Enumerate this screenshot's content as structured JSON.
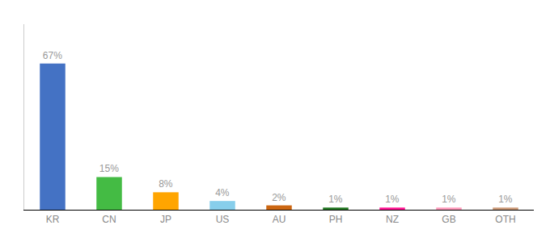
{
  "chart_data": {
    "type": "bar",
    "categories": [
      "KR",
      "CN",
      "JP",
      "US",
      "AU",
      "PH",
      "NZ",
      "GB",
      "OTH"
    ],
    "values": [
      67,
      15,
      8,
      4,
      2,
      1,
      1,
      1,
      1
    ],
    "value_labels": [
      "67%",
      "15%",
      "8%",
      "4%",
      "2%",
      "1%",
      "1%",
      "1%",
      "1%"
    ],
    "colors": [
      "#4472C4",
      "#44BB44",
      "#FFA500",
      "#87CEEB",
      "#CC6611",
      "#227722",
      "#FF1493",
      "#FF99BB",
      "#CC9977"
    ],
    "ylim": [
      0,
      85
    ],
    "grid": false,
    "data_labels": true,
    "tick_labels": "x"
  }
}
